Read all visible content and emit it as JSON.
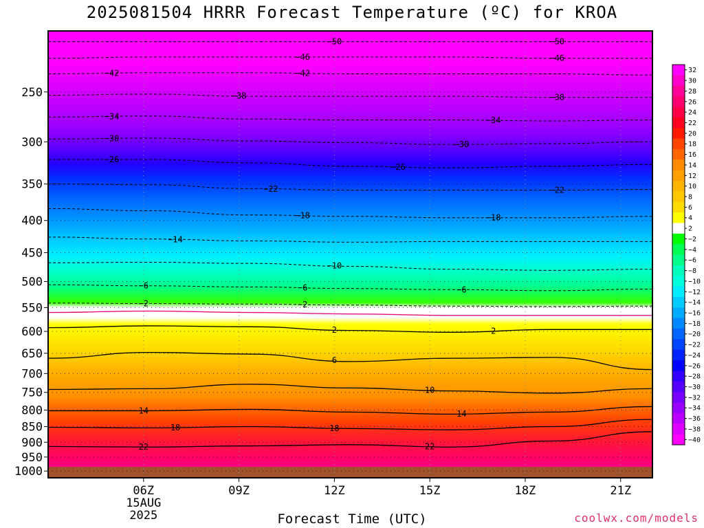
{
  "title": "2025081504 HRRR Forecast Temperature (ºC) for KROA",
  "credit": "coolwx.com/models",
  "chart_data": {
    "type": "contour",
    "title": "2025081504 HRRR Forecast Temperature (ºC) for KROA",
    "xlabel": "Forecast Time (UTC)",
    "ylabel": "",
    "x_range_hours_utc": [
      3,
      21
    ],
    "y_range_hpa": [
      1000,
      200
    ],
    "y_scale": "log",
    "x_ticks": [
      {
        "hour": 6,
        "label": "06Z",
        "sub": [
          "15AUG",
          "2025"
        ]
      },
      {
        "hour": 9,
        "label": "09Z",
        "sub": []
      },
      {
        "hour": 12,
        "label": "12Z",
        "sub": []
      },
      {
        "hour": 15,
        "label": "15Z",
        "sub": []
      },
      {
        "hour": 18,
        "label": "18Z",
        "sub": []
      },
      {
        "hour": 21,
        "label": "21Z",
        "sub": []
      }
    ],
    "y_ticks": [
      250,
      300,
      350,
      400,
      450,
      500,
      550,
      600,
      650,
      700,
      750,
      800,
      850,
      900,
      950,
      1000
    ],
    "colorbar": {
      "labels": [
        "32",
        "30",
        "28",
        "26",
        "24",
        "22",
        "20",
        "18",
        "16",
        "14",
        "12",
        "10",
        "8",
        "6",
        "4",
        "2",
        "−2",
        "−4",
        "−6",
        "−8",
        "−10",
        "−12",
        "−14",
        "−16",
        "−18",
        "−20",
        "−22",
        "−24",
        "−26",
        "−28",
        "−30",
        "−32",
        "−34",
        "−36",
        "−38",
        "−40"
      ],
      "colors": [
        "#ff00ff",
        "#ff00cc",
        "#ff0099",
        "#ff0070",
        "#ff0048",
        "#ff0020",
        "#ff1a00",
        "#ff4400",
        "#ff6600",
        "#ff8c00",
        "#ffa000",
        "#ffb400",
        "#ffc800",
        "#ffdc00",
        "#ffff00",
        "#ffffff",
        "#00ff00",
        "#00ff55",
        "#00ff88",
        "#00ffbb",
        "#00ffdd",
        "#00eeff",
        "#00ccff",
        "#00aaff",
        "#0088ff",
        "#0066ff",
        "#0044ff",
        "#0022ff",
        "#0000ff",
        "#3300ff",
        "#5500ff",
        "#7700ff",
        "#9900ff",
        "#bb00ff",
        "#dd00ff",
        "#ff00ff"
      ]
    },
    "ground_color": "#a0522d",
    "isotherms": [
      {
        "temp": -50,
        "p": [
          208,
          208,
          208,
          208,
          208,
          208,
          208
        ],
        "labels": [
          {
            "h": 12,
            "text": "−50"
          },
          {
            "h": 19,
            "text": "−50"
          }
        ]
      },
      {
        "temp": -46,
        "p": [
          221,
          220,
          220,
          220,
          220,
          221,
          221
        ],
        "labels": [
          {
            "h": 11,
            "text": "−46"
          },
          {
            "h": 19,
            "text": "−46"
          }
        ]
      },
      {
        "temp": -42,
        "p": [
          234,
          233,
          233,
          234,
          234,
          234,
          235
        ],
        "labels": [
          {
            "h": 5,
            "text": "−42"
          },
          {
            "h": 11,
            "text": "−42"
          }
        ]
      },
      {
        "temp": -38,
        "p": [
          253,
          252,
          254,
          254,
          254,
          255,
          255
        ],
        "labels": [
          {
            "h": 9,
            "text": "−38"
          },
          {
            "h": 19,
            "text": "−38"
          }
        ]
      },
      {
        "temp": -34,
        "p": [
          274,
          273,
          276,
          277,
          277,
          278,
          277
        ],
        "labels": [
          {
            "h": 5,
            "text": "−34"
          },
          {
            "h": 17,
            "text": "−34"
          }
        ]
      },
      {
        "temp": -30,
        "p": [
          297,
          296,
          299,
          301,
          303,
          302,
          300
        ],
        "labels": [
          {
            "h": 5,
            "text": "−30"
          },
          {
            "h": 16,
            "text": "−30"
          }
        ]
      },
      {
        "temp": -26,
        "p": [
          320,
          320,
          324,
          328,
          330,
          328,
          326
        ],
        "labels": [
          {
            "h": 5,
            "text": "−26"
          },
          {
            "h": 14,
            "text": "−26"
          }
        ]
      },
      {
        "temp": -22,
        "p": [
          350,
          351,
          356,
          358,
          358,
          358,
          357
        ],
        "labels": [
          {
            "h": 10,
            "text": "−22"
          },
          {
            "h": 19,
            "text": "−22"
          }
        ]
      },
      {
        "temp": -18,
        "p": [
          383,
          386,
          392,
          394,
          396,
          396,
          394
        ],
        "labels": [
          {
            "h": 11,
            "text": "−18"
          },
          {
            "h": 17,
            "text": "−18"
          }
        ]
      },
      {
        "temp": -14,
        "p": [
          425,
          428,
          431,
          433,
          432,
          432,
          432
        ],
        "labels": [
          {
            "h": 7,
            "text": "−14"
          }
        ]
      },
      {
        "temp": -10,
        "p": [
          467,
          466,
          468,
          473,
          478,
          480,
          478
        ],
        "labels": [
          {
            "h": 12,
            "text": "−10"
          }
        ]
      },
      {
        "temp": -6,
        "p": [
          506,
          508,
          510,
          513,
          515,
          517,
          514
        ],
        "labels": [
          {
            "h": 6,
            "text": "−6"
          },
          {
            "h": 11,
            "text": "−6"
          },
          {
            "h": 16,
            "text": "−6"
          }
        ]
      },
      {
        "temp": -2,
        "p": [
          541,
          542,
          543,
          545,
          547,
          548,
          547
        ],
        "labels": [
          {
            "h": 6,
            "text": "−2"
          },
          {
            "h": 11,
            "text": "−2"
          }
        ]
      },
      {
        "temp": 2,
        "p": [
          592,
          588,
          590,
          598,
          602,
          596,
          596
        ],
        "labels": [
          {
            "h": 12,
            "text": "2"
          },
          {
            "h": 17,
            "text": "2"
          }
        ]
      },
      {
        "temp": 6,
        "p": [
          662,
          648,
          652,
          670,
          662,
          660,
          690
        ],
        "labels": [
          {
            "h": 12,
            "text": "6"
          }
        ]
      },
      {
        "temp": 10,
        "p": [
          742,
          740,
          728,
          738,
          746,
          752,
          740
        ],
        "labels": [
          {
            "h": 15,
            "text": "10"
          }
        ]
      },
      {
        "temp": 14,
        "p": [
          802,
          802,
          798,
          806,
          812,
          806,
          790
        ],
        "labels": [
          {
            "h": 6,
            "text": "14"
          },
          {
            "h": 16,
            "text": "14"
          }
        ]
      },
      {
        "temp": 18,
        "p": [
          852,
          854,
          850,
          856,
          860,
          850,
          828
        ],
        "labels": [
          {
            "h": 7,
            "text": "18"
          },
          {
            "h": 12,
            "text": "18"
          }
        ]
      },
      {
        "temp": 22,
        "p": [
          914,
          916,
          912,
          908,
          916,
          896,
          866
        ],
        "labels": [
          {
            "h": 6,
            "text": "22"
          },
          {
            "h": 15,
            "text": "22"
          }
        ]
      }
    ],
    "freezing_line_p": [
      560,
      557,
      560,
      563,
      566,
      566,
      566
    ],
    "ground_p": 985
  }
}
